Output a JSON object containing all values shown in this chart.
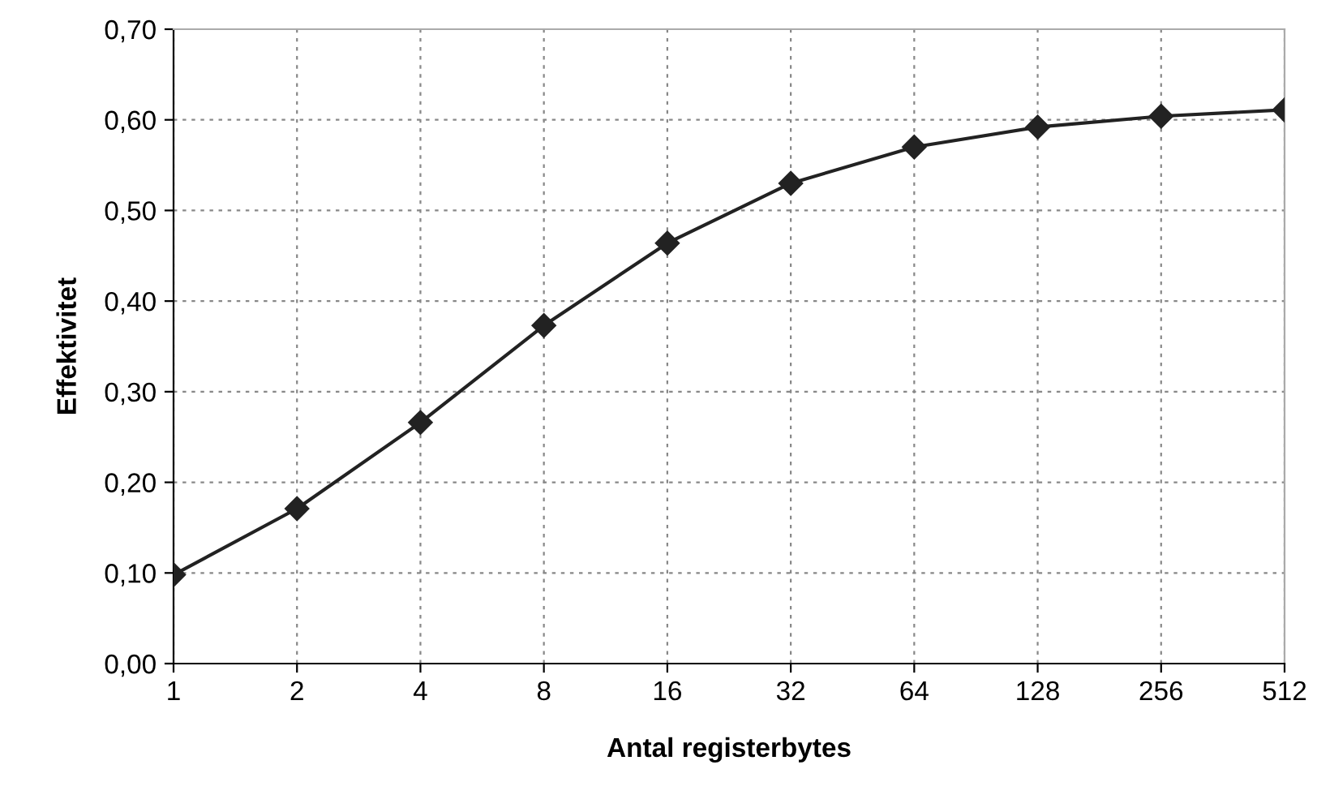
{
  "chart_data": {
    "type": "line",
    "xlabel": "Antal registerbytes",
    "ylabel": "Effektivitet",
    "categories": [
      "1",
      "2",
      "4",
      "8",
      "16",
      "32",
      "64",
      "128",
      "256",
      "512"
    ],
    "series": [
      {
        "color": "#222222",
        "values": [
          0.098,
          0.171,
          0.266,
          0.373,
          0.464,
          0.53,
          0.57,
          0.592,
          0.604,
          0.611
        ]
      }
    ],
    "ylim": [
      0,
      0.7
    ],
    "yticks": [
      {
        "value": 0,
        "label": "0,00"
      },
      {
        "value": 0.1,
        "label": "0,10"
      },
      {
        "value": 0.2,
        "label": "0,20"
      },
      {
        "value": 0.3,
        "label": "0,30"
      },
      {
        "value": 0.4,
        "label": "0,40"
      },
      {
        "value": 0.5,
        "label": "0,50"
      },
      {
        "value": 0.6,
        "label": "0,60"
      },
      {
        "value": 0.7,
        "label": "0,70"
      }
    ],
    "grid": true,
    "marker": "diamond",
    "line_style": "solid",
    "legend": false
  }
}
